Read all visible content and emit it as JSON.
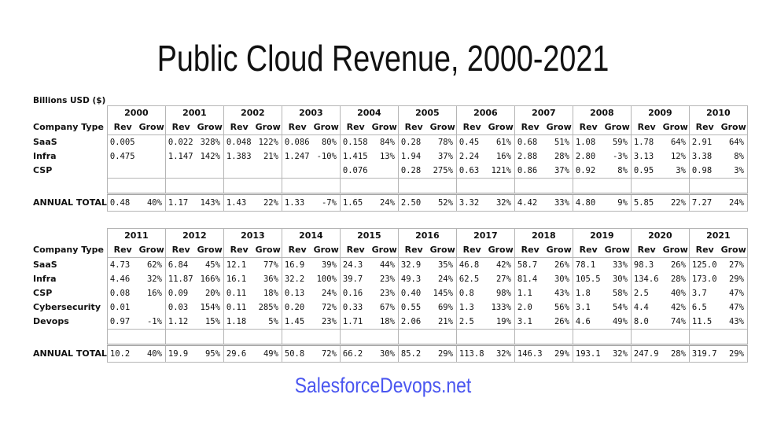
{
  "title": "Public Cloud Revenue, 2000-2021",
  "unit_label": "Billions USD ($)",
  "row_header": "Company Type",
  "rev_label": "Rev",
  "grow_label": "Grow",
  "footer": "SalesforceDevops.net",
  "colors": {
    "footer": "#4a56f0",
    "grid": "#b5b5b5"
  },
  "tables": [
    {
      "years": [
        "2000",
        "2001",
        "2002",
        "2003",
        "2004",
        "2005",
        "2006",
        "2007",
        "2008",
        "2009",
        "2010"
      ],
      "rows": [
        {
          "label": "SaaS",
          "cells": [
            [
              "0.005",
              ""
            ],
            [
              "0.022",
              "328%"
            ],
            [
              "0.048",
              "122%"
            ],
            [
              "0.086",
              "80%"
            ],
            [
              "0.158",
              "84%"
            ],
            [
              "0.28",
              "78%"
            ],
            [
              "0.45",
              "61%"
            ],
            [
              "0.68",
              "51%"
            ],
            [
              "1.08",
              "59%"
            ],
            [
              "1.78",
              "64%"
            ],
            [
              "2.91",
              "64%"
            ]
          ]
        },
        {
          "label": "Infra",
          "cells": [
            [
              "0.475",
              ""
            ],
            [
              "1.147",
              "142%"
            ],
            [
              "1.383",
              "21%"
            ],
            [
              "1.247",
              "-10%"
            ],
            [
              "1.415",
              "13%"
            ],
            [
              "1.94",
              "37%"
            ],
            [
              "2.24",
              "16%"
            ],
            [
              "2.88",
              "28%"
            ],
            [
              "2.80",
              "-3%"
            ],
            [
              "3.13",
              "12%"
            ],
            [
              "3.38",
              "8%"
            ]
          ]
        },
        {
          "label": "CSP",
          "cells": [
            [
              "",
              ""
            ],
            [
              "",
              ""
            ],
            [
              "",
              ""
            ],
            [
              "",
              ""
            ],
            [
              "0.076",
              ""
            ],
            [
              "0.28",
              "275%"
            ],
            [
              "0.63",
              "121%"
            ],
            [
              "0.86",
              "37%"
            ],
            [
              "0.92",
              "8%"
            ],
            [
              "0.95",
              "3%"
            ],
            [
              "0.98",
              "3%"
            ]
          ]
        }
      ],
      "total": {
        "label": "ANNUAL TOTAL",
        "cells": [
          [
            "0.48",
            "40%"
          ],
          [
            "1.17",
            "143%"
          ],
          [
            "1.43",
            "22%"
          ],
          [
            "1.33",
            "-7%"
          ],
          [
            "1.65",
            "24%"
          ],
          [
            "2.50",
            "52%"
          ],
          [
            "3.32",
            "32%"
          ],
          [
            "4.42",
            "33%"
          ],
          [
            "4.80",
            "9%"
          ],
          [
            "5.85",
            "22%"
          ],
          [
            "7.27",
            "24%"
          ]
        ]
      }
    },
    {
      "years": [
        "2011",
        "2012",
        "2013",
        "2014",
        "2015",
        "2016",
        "2017",
        "2018",
        "2019",
        "2020",
        "2021"
      ],
      "rows": [
        {
          "label": "SaaS",
          "cells": [
            [
              "4.73",
              "62%"
            ],
            [
              "6.84",
              "45%"
            ],
            [
              "12.1",
              "77%"
            ],
            [
              "16.9",
              "39%"
            ],
            [
              "24.3",
              "44%"
            ],
            [
              "32.9",
              "35%"
            ],
            [
              "46.8",
              "42%"
            ],
            [
              "58.7",
              "26%"
            ],
            [
              "78.1",
              "33%"
            ],
            [
              "98.3",
              "26%"
            ],
            [
              "125.0",
              "27%"
            ]
          ]
        },
        {
          "label": "Infra",
          "cells": [
            [
              "4.46",
              "32%"
            ],
            [
              "11.87",
              "166%"
            ],
            [
              "16.1",
              "36%"
            ],
            [
              "32.2",
              "100%"
            ],
            [
              "39.7",
              "23%"
            ],
            [
              "49.3",
              "24%"
            ],
            [
              "62.5",
              "27%"
            ],
            [
              "81.4",
              "30%"
            ],
            [
              "105.5",
              "30%"
            ],
            [
              "134.6",
              "28%"
            ],
            [
              "173.0",
              "29%"
            ]
          ]
        },
        {
          "label": "CSP",
          "cells": [
            [
              "0.08",
              "16%"
            ],
            [
              "0.09",
              "20%"
            ],
            [
              "0.11",
              "18%"
            ],
            [
              "0.13",
              "24%"
            ],
            [
              "0.16",
              "23%"
            ],
            [
              "0.40",
              "145%"
            ],
            [
              "0.8",
              "98%"
            ],
            [
              "1.1",
              "43%"
            ],
            [
              "1.8",
              "58%"
            ],
            [
              "2.5",
              "40%"
            ],
            [
              "3.7",
              "47%"
            ]
          ]
        },
        {
          "label": "Cybersecurity",
          "cells": [
            [
              "0.01",
              ""
            ],
            [
              "0.03",
              "154%"
            ],
            [
              "0.11",
              "285%"
            ],
            [
              "0.20",
              "72%"
            ],
            [
              "0.33",
              "67%"
            ],
            [
              "0.55",
              "69%"
            ],
            [
              "1.3",
              "133%"
            ],
            [
              "2.0",
              "56%"
            ],
            [
              "3.1",
              "54%"
            ],
            [
              "4.4",
              "42%"
            ],
            [
              "6.5",
              "47%"
            ]
          ]
        },
        {
          "label": "Devops",
          "cells": [
            [
              "0.97",
              "-1%"
            ],
            [
              "1.12",
              "15%"
            ],
            [
              "1.18",
              "5%"
            ],
            [
              "1.45",
              "23%"
            ],
            [
              "1.71",
              "18%"
            ],
            [
              "2.06",
              "21%"
            ],
            [
              "2.5",
              "19%"
            ],
            [
              "3.1",
              "26%"
            ],
            [
              "4.6",
              "49%"
            ],
            [
              "8.0",
              "74%"
            ],
            [
              "11.5",
              "43%"
            ]
          ]
        }
      ],
      "total": {
        "label": "ANNUAL TOTAL",
        "cells": [
          [
            "10.2",
            "40%"
          ],
          [
            "19.9",
            "95%"
          ],
          [
            "29.6",
            "49%"
          ],
          [
            "50.8",
            "72%"
          ],
          [
            "66.2",
            "30%"
          ],
          [
            "85.2",
            "29%"
          ],
          [
            "113.8",
            "32%"
          ],
          [
            "146.3",
            "29%"
          ],
          [
            "193.1",
            "32%"
          ],
          [
            "247.9",
            "28%"
          ],
          [
            "319.7",
            "29%"
          ]
        ]
      }
    }
  ]
}
